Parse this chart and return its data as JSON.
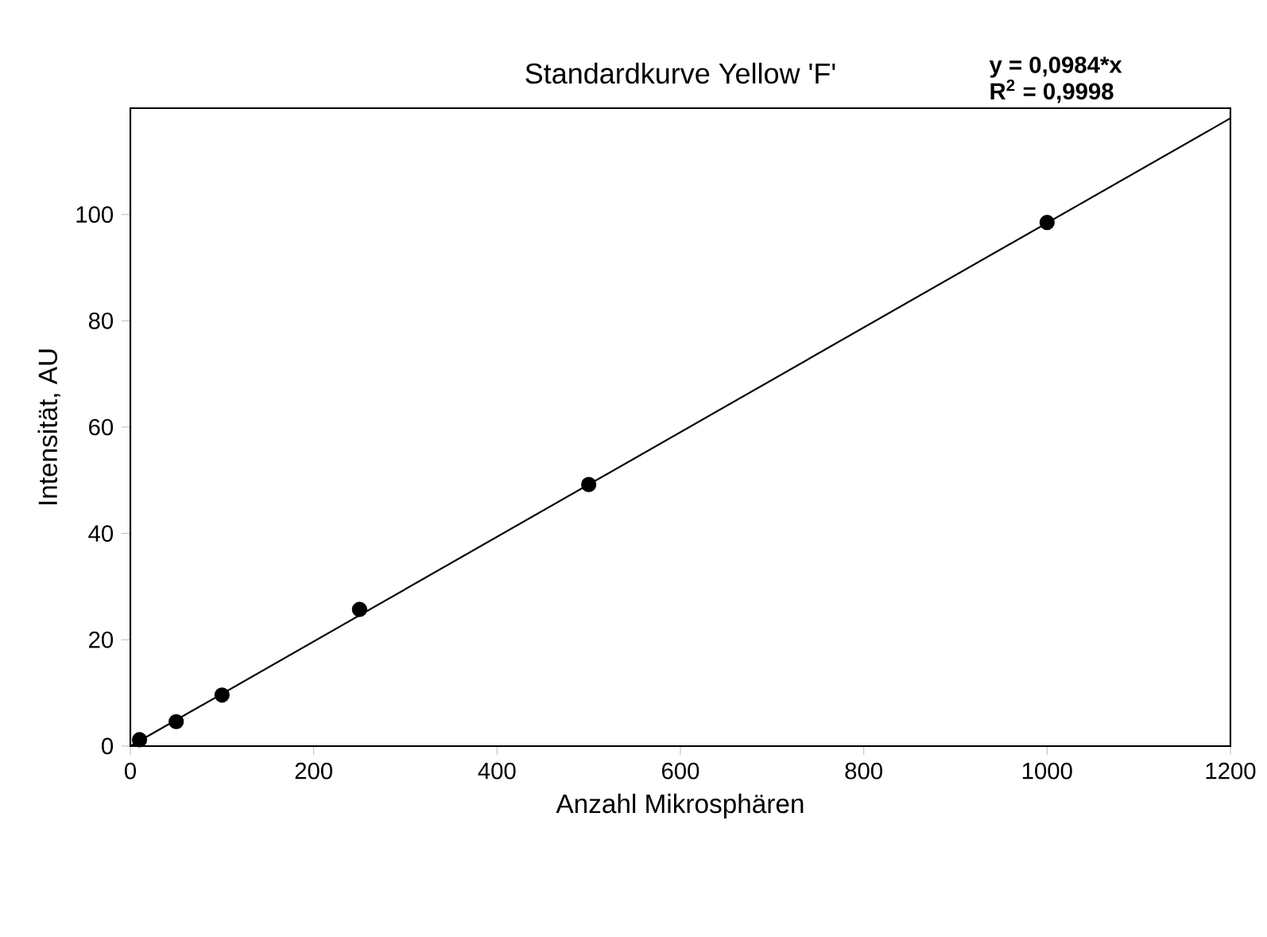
{
  "chart_data": {
    "type": "scatter",
    "title": "Standardkurve Yellow 'F'",
    "xlabel": "Anzahl Mikrosphären",
    "ylabel": "Intensität, AU",
    "annotations": [
      "y   = 0,0984*x",
      "R$^{2}$ = 0,9998"
    ],
    "xlim": [
      0,
      1200
    ],
    "ylim": [
      0,
      120
    ],
    "xticks": [
      0,
      200,
      400,
      600,
      800,
      1000,
      1200
    ],
    "yticks": [
      0,
      20,
      40,
      60,
      80,
      100
    ],
    "grid": false,
    "series": [
      {
        "color": "#000000",
        "marker": "circle",
        "x": [
          10,
          50,
          100,
          250,
          500,
          1000
        ],
        "values": [
          1.2,
          4.6,
          9.6,
          25.7,
          49.2,
          98.5
        ]
      },
      {
        "type": "line",
        "color": "#000000",
        "marker": "none",
        "line_style": "solid",
        "x": [
          0,
          1200
        ],
        "values": [
          0,
          118.1
        ]
      }
    ]
  }
}
